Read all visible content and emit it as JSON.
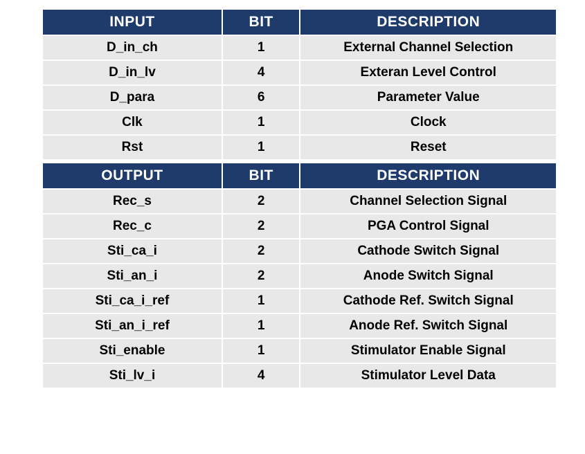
{
  "colors": {
    "header_bg": "#1f3b6b",
    "header_text": "#ffffff",
    "row_bg": "#e8e8e8",
    "row_text": "#000000",
    "spacing_bg": "#ffffff"
  },
  "input_table": {
    "headers": {
      "col1": "INPUT",
      "col2": "BIT",
      "col3": "DESCRIPTION"
    },
    "rows": [
      {
        "name": "D_in_ch",
        "bit": "1",
        "desc": "External Channel Selection"
      },
      {
        "name": "D_in_lv",
        "bit": "4",
        "desc": "Exteran Level Control"
      },
      {
        "name": "D_para",
        "bit": "6",
        "desc": "Parameter Value"
      },
      {
        "name": "Clk",
        "bit": "1",
        "desc": "Clock"
      },
      {
        "name": "Rst",
        "bit": "1",
        "desc": "Reset"
      }
    ]
  },
  "output_table": {
    "headers": {
      "col1": "OUTPUT",
      "col2": "BIT",
      "col3": "DESCRIPTION"
    },
    "rows": [
      {
        "name": "Rec_s",
        "bit": "2",
        "desc": "Channel Selection Signal"
      },
      {
        "name": "Rec_c",
        "bit": "2",
        "desc": "PGA Control Signal"
      },
      {
        "name": "Sti_ca_i",
        "bit": "2",
        "desc": "Cathode Switch Signal"
      },
      {
        "name": "Sti_an_i",
        "bit": "2",
        "desc": "Anode Switch Signal"
      },
      {
        "name": "Sti_ca_i_ref",
        "bit": "1",
        "desc": "Cathode Ref. Switch Signal"
      },
      {
        "name": "Sti_an_i_ref",
        "bit": "1",
        "desc": "Anode Ref. Switch Signal"
      },
      {
        "name": "Sti_enable",
        "bit": "1",
        "desc": "Stimulator Enable Signal"
      },
      {
        "name": "Sti_lv_i",
        "bit": "4",
        "desc": "Stimulator Level Data"
      }
    ]
  }
}
